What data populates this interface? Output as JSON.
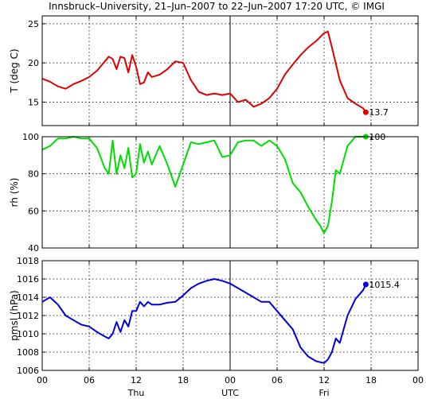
{
  "chart_data": {
    "type": "line",
    "title": "Innsbruck–University, 21–Jun–2007 to 22–Jun–2007 17:20 UTC, © IMGI",
    "x_ticks": [
      "00",
      "06",
      "12",
      "18",
      "00",
      "06",
      "12",
      "18",
      "00"
    ],
    "x_day_labels": [
      {
        "label": "Thu",
        "hour": 12
      },
      {
        "label": "UTC",
        "hour": 24
      },
      {
        "label": "Fri",
        "hour": 36
      }
    ],
    "xlim": [
      0,
      48
    ],
    "grid": true,
    "panels": [
      {
        "ylabel": "T (deg C)",
        "ylim": [
          12,
          26
        ],
        "yticks": [
          15,
          20,
          25
        ],
        "color": "#dd0000",
        "last_value_label": "13.7",
        "x": [
          0,
          1,
          2,
          3,
          4,
          5,
          6,
          7,
          8,
          8.5,
          9,
          9.5,
          10,
          10.5,
          11,
          11.5,
          12,
          12.5,
          13,
          13.5,
          14,
          15,
          16,
          17,
          18,
          19,
          20,
          21,
          22,
          23,
          24,
          25,
          26,
          27,
          28,
          29,
          30,
          31,
          32,
          33,
          34,
          35,
          36,
          36.5,
          37,
          38,
          39,
          40,
          41,
          41.33
        ],
        "y": [
          18.0,
          17.6,
          17.0,
          16.7,
          17.3,
          17.7,
          18.2,
          19.0,
          20.2,
          20.8,
          20.5,
          19.2,
          20.8,
          20.6,
          18.8,
          21.0,
          19.5,
          17.3,
          17.5,
          18.8,
          18.2,
          18.5,
          19.2,
          20.2,
          20.0,
          17.8,
          16.3,
          15.9,
          16.1,
          15.9,
          16.1,
          15.0,
          15.3,
          14.4,
          14.8,
          15.5,
          16.7,
          18.5,
          19.8,
          21.0,
          22.0,
          22.8,
          23.8,
          24.0,
          22.0,
          17.8,
          15.5,
          14.8,
          14.2,
          13.7
        ]
      },
      {
        "ylabel": "rh (%)",
        "ylim": [
          40,
          100
        ],
        "yticks": [
          40,
          60,
          80,
          100
        ],
        "color": "#00dd00",
        "last_value_label": "100",
        "x": [
          0,
          1,
          2,
          3,
          4,
          5,
          6,
          7,
          8,
          8.5,
          9,
          9.5,
          10,
          10.5,
          11,
          11.5,
          12,
          12.5,
          13,
          13.5,
          14,
          15,
          16,
          17,
          18,
          19,
          20,
          21,
          22,
          23,
          24,
          25,
          26,
          27,
          28,
          29,
          30,
          31,
          32,
          33,
          34,
          35,
          35.5,
          36,
          36.5,
          37,
          37.5,
          38,
          39,
          40,
          41,
          41.33
        ],
        "y": [
          93,
          95,
          99,
          99,
          100,
          99,
          99,
          94,
          83,
          80,
          98,
          80,
          90,
          83,
          94,
          78,
          80,
          96,
          86,
          92,
          85,
          95,
          85,
          73,
          85,
          97,
          96,
          97,
          98,
          89,
          90,
          97,
          98,
          98,
          95,
          98,
          95,
          88,
          75,
          70,
          62,
          55,
          52,
          48,
          52,
          65,
          82,
          80,
          95,
          100,
          100,
          100
        ]
      },
      {
        "ylabel": "pmsl (hPa)",
        "ylim": [
          1006,
          1018
        ],
        "yticks": [
          1006,
          1008,
          1010,
          1012,
          1014,
          1016,
          1018
        ],
        "color": "#0000dd",
        "last_value_label": "1015.4",
        "x": [
          0,
          1,
          2,
          3,
          4,
          5,
          6,
          7,
          8,
          8.5,
          9,
          9.5,
          10,
          10.5,
          11,
          11.5,
          12,
          12.5,
          13,
          13.5,
          14,
          15,
          16,
          17,
          18,
          19,
          20,
          21,
          22,
          23,
          24,
          25,
          26,
          27,
          28,
          29,
          30,
          31,
          32,
          33,
          34,
          35,
          35.5,
          36,
          36.5,
          37,
          37.5,
          38,
          39,
          40,
          41,
          41.33
        ],
        "y": [
          1013.5,
          1014.0,
          1013.2,
          1012.0,
          1011.5,
          1011.0,
          1010.8,
          1010.2,
          1009.7,
          1009.5,
          1010.0,
          1011.3,
          1010.2,
          1011.5,
          1010.8,
          1012.5,
          1012.5,
          1013.5,
          1013.0,
          1013.5,
          1013.2,
          1013.2,
          1013.4,
          1013.5,
          1014.2,
          1015.0,
          1015.5,
          1015.8,
          1016.0,
          1015.8,
          1015.5,
          1015.0,
          1014.5,
          1014.0,
          1013.5,
          1013.5,
          1012.5,
          1011.5,
          1010.5,
          1008.5,
          1007.5,
          1007.0,
          1006.9,
          1006.8,
          1007.2,
          1008.0,
          1009.5,
          1009.0,
          1012.0,
          1013.8,
          1014.8,
          1015.4
        ]
      }
    ]
  }
}
